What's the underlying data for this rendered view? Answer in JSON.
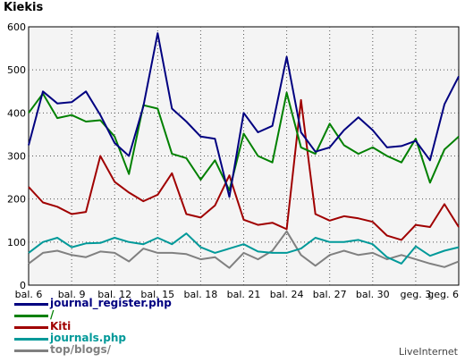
{
  "title": "Kiekis",
  "credit": "LiveInternet",
  "chart_data": {
    "type": "line",
    "ylim": [
      0,
      600
    ],
    "yticks": [
      0,
      100,
      200,
      300,
      400,
      500,
      600
    ],
    "xtick_labels": [
      "bal. 6",
      "bal. 9",
      "bal. 12",
      "bal. 15",
      "bal. 18",
      "bal. 21",
      "bal. 24",
      "bal. 27",
      "bal. 30",
      "geg. 3",
      "geg. 6"
    ],
    "x_count": 31,
    "grid": true,
    "legend_position": "bottom-left",
    "series": [
      {
        "name": "journal_register.php",
        "color": "#000080",
        "values": [
          325,
          450,
          422,
          425,
          450,
          395,
          330,
          300,
          415,
          585,
          410,
          380,
          345,
          340,
          205,
          400,
          355,
          370,
          530,
          355,
          310,
          320,
          360,
          390,
          360,
          320,
          323,
          335,
          290,
          420,
          485
        ]
      },
      {
        "name": "/",
        "color": "#008000",
        "values": [
          400,
          445,
          388,
          395,
          380,
          383,
          345,
          258,
          418,
          410,
          305,
          295,
          245,
          290,
          220,
          352,
          300,
          285,
          447,
          320,
          305,
          375,
          325,
          305,
          320,
          300,
          285,
          340,
          238,
          315,
          345
        ]
      },
      {
        "name": "Kiti",
        "color": "#a00000",
        "values": [
          228,
          192,
          182,
          165,
          170,
          300,
          240,
          215,
          195,
          210,
          260,
          165,
          157,
          185,
          255,
          152,
          140,
          145,
          130,
          430,
          165,
          150,
          160,
          155,
          147,
          115,
          105,
          140,
          135,
          188,
          135
        ]
      },
      {
        "name": "journals.php",
        "color": "#009999",
        "values": [
          75,
          100,
          110,
          88,
          97,
          98,
          110,
          100,
          95,
          110,
          95,
          120,
          88,
          75,
          85,
          95,
          78,
          75,
          75,
          85,
          110,
          100,
          100,
          105,
          95,
          65,
          50,
          90,
          68,
          80,
          88
        ]
      },
      {
        "name": "top/blogs/",
        "color": "#808080",
        "values": [
          50,
          75,
          80,
          70,
          65,
          78,
          75,
          55,
          85,
          75,
          75,
          72,
          60,
          65,
          40,
          75,
          60,
          80,
          125,
          70,
          45,
          70,
          80,
          70,
          75,
          60,
          70,
          60,
          50,
          42,
          55
        ]
      }
    ]
  }
}
